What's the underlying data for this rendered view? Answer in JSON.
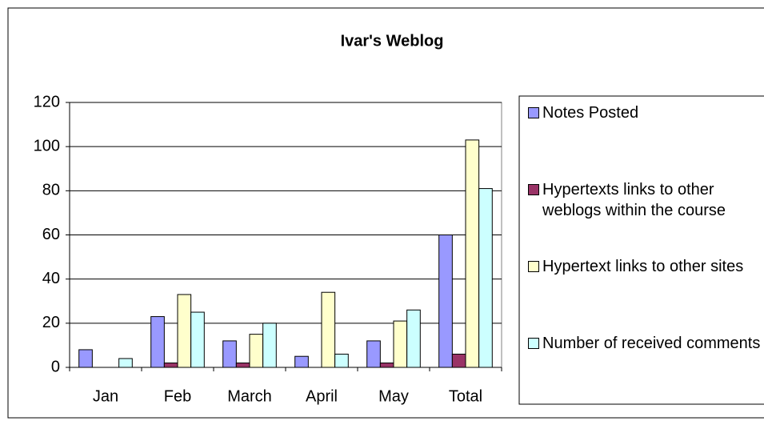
{
  "chart_data": {
    "type": "bar",
    "title": "Ivar's Weblog",
    "categories": [
      "Jan",
      "Feb",
      "March",
      "April",
      "May",
      "Total"
    ],
    "series": [
      {
        "name": "Notes Posted",
        "color": "#9999ff",
        "values": [
          8,
          23,
          12,
          5,
          12,
          60
        ]
      },
      {
        "name": "Hypertexts links to other weblogs within the course",
        "color": "#993366",
        "values": [
          0,
          2,
          2,
          0,
          2,
          6
        ]
      },
      {
        "name": "Hypertext links to other sites",
        "color": "#ffffcc",
        "values": [
          0,
          33,
          15,
          34,
          21,
          103
        ]
      },
      {
        "name": "Number of received comments",
        "color": "#ccffff",
        "values": [
          4,
          25,
          20,
          6,
          26,
          81
        ]
      }
    ],
    "ylim": [
      0,
      120
    ],
    "yticks": [
      0,
      20,
      40,
      60,
      80,
      100,
      120
    ],
    "grid": true,
    "legend": "right"
  }
}
